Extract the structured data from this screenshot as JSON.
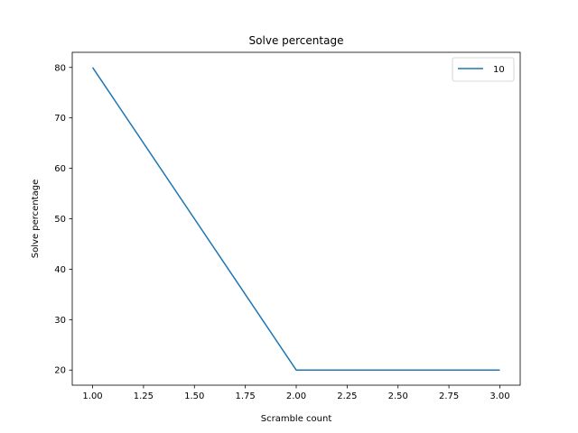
{
  "chart_data": {
    "type": "line",
    "title": "Solve percentage",
    "xlabel": "Scramble count",
    "ylabel": "Solve percentage",
    "xlim": [
      0.9,
      3.1
    ],
    "ylim": [
      17,
      83
    ],
    "xticks": [
      "1.00",
      "1.25",
      "1.50",
      "1.75",
      "2.00",
      "2.25",
      "2.50",
      "2.75",
      "3.00"
    ],
    "yticks": [
      "20",
      "30",
      "40",
      "50",
      "60",
      "70",
      "80"
    ],
    "grid": false,
    "legend_position": "top-right",
    "series": [
      {
        "name": "10",
        "color": "#1f77b4",
        "x": [
          1,
          2,
          3
        ],
        "y": [
          80,
          20,
          20
        ]
      }
    ]
  }
}
